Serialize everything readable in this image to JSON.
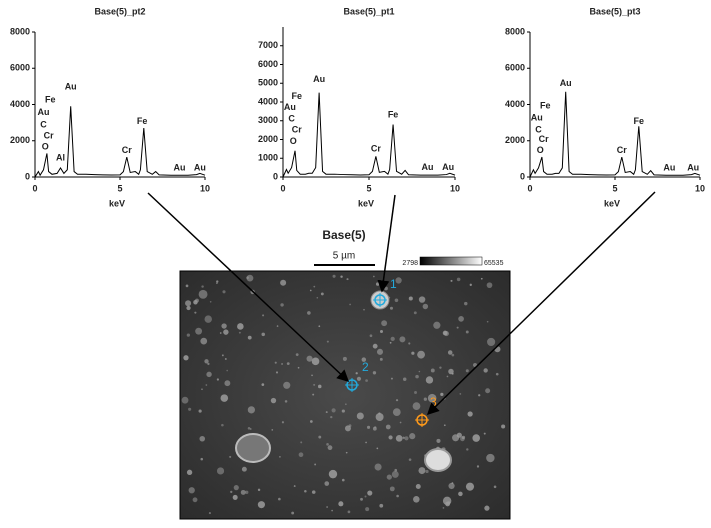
{
  "chart_data": [
    {
      "type": "line",
      "title": "Base(5)_pt2",
      "xlabel": "keV",
      "x": [
        0,
        0.2,
        0.3,
        0.5,
        0.7,
        0.8,
        1.0,
        1.3,
        1.5,
        1.7,
        1.9,
        2.1,
        2.3,
        2.5,
        3,
        3.5,
        4,
        4.5,
        5,
        5.2,
        5.4,
        5.6,
        5.9,
        6.1,
        6.2,
        6.4,
        6.6,
        6.9,
        7.1,
        7.3,
        8,
        8.5,
        9,
        9.5,
        9.7,
        10
      ],
      "series": [
        {
          "color": "#000000",
          "values": [
            0,
            300,
            100,
            400,
            1300,
            300,
            150,
            200,
            500,
            200,
            400,
            3900,
            300,
            150,
            150,
            130,
            120,
            110,
            120,
            300,
            1100,
            250,
            300,
            150,
            400,
            2700,
            300,
            150,
            300,
            120,
            100,
            100,
            100,
            130,
            200,
            100
          ]
        }
      ],
      "xlim": [
        0,
        10
      ],
      "xticks": [
        0,
        5,
        10
      ],
      "ylim": [
        0,
        8000
      ],
      "yticks": [
        0,
        2000,
        4000,
        6000,
        8000
      ],
      "annotations": [
        {
          "text": "Fe",
          "x": 0.9,
          "y": 4250
        },
        {
          "text": "Au",
          "x": 0.5,
          "y": 3550
        },
        {
          "text": "C",
          "x": 0.5,
          "y": 2850
        },
        {
          "text": "Cr",
          "x": 0.8,
          "y": 2250
        },
        {
          "text": "O",
          "x": 0.6,
          "y": 1650
        },
        {
          "text": "Al",
          "x": 1.5,
          "y": 1050
        },
        {
          "text": "Au",
          "x": 2.1,
          "y": 4950
        },
        {
          "text": "Cr",
          "x": 5.4,
          "y": 1450
        },
        {
          "text": "Fe",
          "x": 6.3,
          "y": 3050
        },
        {
          "text": "Au",
          "x": 8.5,
          "y": 500
        },
        {
          "text": "Au",
          "x": 9.7,
          "y": 500
        }
      ]
    },
    {
      "type": "line",
      "title": "Base(5)_pt1",
      "xlabel": "keV",
      "x": [
        0,
        0.2,
        0.3,
        0.5,
        0.7,
        0.8,
        1.0,
        1.3,
        1.5,
        1.7,
        1.9,
        2.1,
        2.3,
        2.5,
        3,
        3.5,
        4,
        4.5,
        5,
        5.2,
        5.4,
        5.6,
        5.9,
        6.1,
        6.2,
        6.4,
        6.6,
        6.9,
        7.1,
        7.3,
        8,
        8.5,
        9,
        9.5,
        9.7,
        10
      ],
      "series": [
        {
          "color": "#000000",
          "values": [
            0,
            400,
            200,
            500,
            1400,
            350,
            150,
            150,
            200,
            200,
            500,
            4500,
            300,
            150,
            150,
            130,
            120,
            110,
            120,
            300,
            1100,
            250,
            300,
            150,
            400,
            2800,
            300,
            150,
            350,
            120,
            100,
            100,
            100,
            130,
            200,
            100
          ]
        }
      ],
      "xlim": [
        0,
        10
      ],
      "xticks": [
        0,
        5,
        10
      ],
      "ylim": [
        0,
        8000
      ],
      "yticks": [
        0,
        1000,
        2000,
        3000,
        4000,
        5000,
        6000,
        7000
      ],
      "annotations": [
        {
          "text": "Fe",
          "x": 0.8,
          "y": 4300
        },
        {
          "text": "Au",
          "x": 0.4,
          "y": 3700
        },
        {
          "text": "C",
          "x": 0.5,
          "y": 3100
        },
        {
          "text": "Cr",
          "x": 0.8,
          "y": 2500
        },
        {
          "text": "O",
          "x": 0.6,
          "y": 1900
        },
        {
          "text": "Au",
          "x": 2.1,
          "y": 5200
        },
        {
          "text": "Cr",
          "x": 5.4,
          "y": 1500
        },
        {
          "text": "Fe",
          "x": 6.4,
          "y": 3300
        },
        {
          "text": "Au",
          "x": 8.4,
          "y": 500
        },
        {
          "text": "Au",
          "x": 9.6,
          "y": 500
        }
      ]
    },
    {
      "type": "line",
      "title": "Base(5)_pt3",
      "xlabel": "keV",
      "x": [
        0,
        0.2,
        0.3,
        0.5,
        0.7,
        0.8,
        1.0,
        1.3,
        1.5,
        1.7,
        1.9,
        2.1,
        2.3,
        2.5,
        3,
        3.5,
        4,
        4.5,
        5,
        5.2,
        5.4,
        5.6,
        5.9,
        6.1,
        6.2,
        6.4,
        6.6,
        6.9,
        7.1,
        7.3,
        8,
        8.5,
        9,
        9.5,
        9.7,
        10
      ],
      "series": [
        {
          "color": "#000000",
          "values": [
            0,
            400,
            200,
            500,
            1100,
            300,
            150,
            150,
            200,
            200,
            500,
            4700,
            300,
            150,
            150,
            130,
            120,
            110,
            120,
            300,
            1100,
            250,
            300,
            150,
            400,
            2800,
            300,
            150,
            350,
            120,
            100,
            100,
            100,
            130,
            200,
            100
          ]
        }
      ],
      "xlim": [
        0,
        10
      ],
      "xticks": [
        0,
        5,
        10
      ],
      "ylim": [
        0,
        8000
      ],
      "yticks": [
        0,
        2000,
        4000,
        6000,
        8000
      ],
      "annotations": [
        {
          "text": "Fe",
          "x": 0.9,
          "y": 3900
        },
        {
          "text": "Au",
          "x": 0.4,
          "y": 3250
        },
        {
          "text": "C",
          "x": 0.5,
          "y": 2600
        },
        {
          "text": "Cr",
          "x": 0.8,
          "y": 2050
        },
        {
          "text": "O",
          "x": 0.6,
          "y": 1450
        },
        {
          "text": "Au",
          "x": 2.1,
          "y": 5150
        },
        {
          "text": "Cr",
          "x": 5.4,
          "y": 1450
        },
        {
          "text": "Fe",
          "x": 6.4,
          "y": 3050
        },
        {
          "text": "Au",
          "x": 8.2,
          "y": 500
        },
        {
          "text": "Au",
          "x": 9.6,
          "y": 500
        }
      ]
    }
  ],
  "image": {
    "title": "Base(5)",
    "scale_bar": "5 µm",
    "colorbar_min": 2798,
    "colorbar_max": 65535,
    "points": [
      "1",
      "2",
      "3"
    ]
  }
}
